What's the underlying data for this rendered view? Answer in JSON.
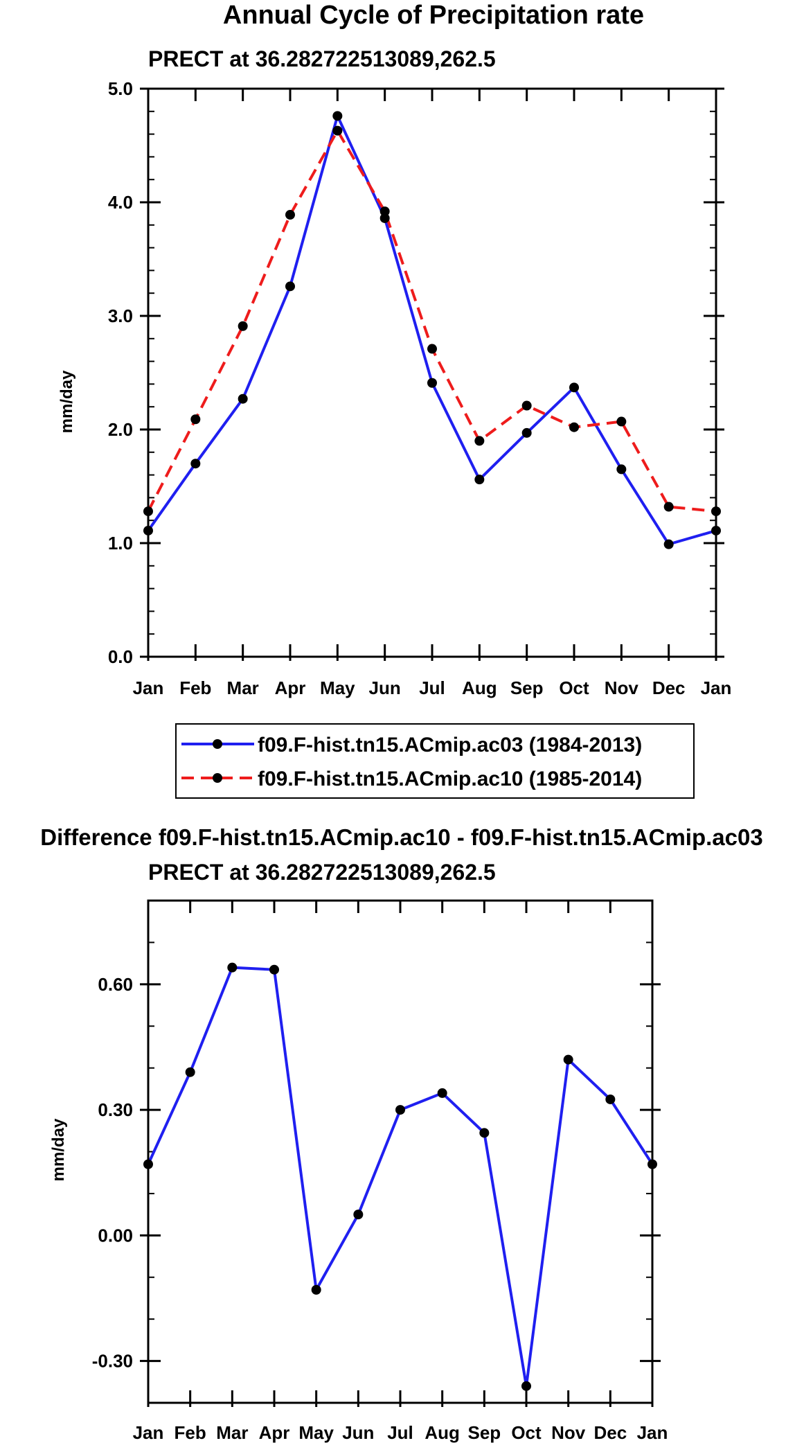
{
  "colors": {
    "series1": "#1f1ff0",
    "series2": "#ee1c1c",
    "marker": "#000000",
    "axis": "#000000"
  },
  "chart_data": [
    {
      "type": "line",
      "title": "Annual Cycle of Precipitation rate",
      "subtitle": "PRECT at 36.282722513089,262.5",
      "xlabel": "",
      "ylabel": "mm/day",
      "categories": [
        "Jan",
        "Feb",
        "Mar",
        "Apr",
        "May",
        "Jun",
        "Jul",
        "Aug",
        "Sep",
        "Oct",
        "Nov",
        "Dec",
        "Jan"
      ],
      "ylim": [
        0,
        5
      ],
      "yticks": [
        0,
        1,
        2,
        3,
        4,
        5
      ],
      "ytick_labels": [
        "0.0",
        "1.0",
        "2.0",
        "3.0",
        "4.0",
        "5.0"
      ],
      "grid": false,
      "legend_position": "bottom",
      "series": [
        {
          "name": "f09.F-hist.tn15.ACmip.ac03 (1984-2013)",
          "color": "#1f1ff0",
          "dash": "solid",
          "values": [
            1.11,
            1.7,
            2.27,
            3.26,
            4.76,
            3.86,
            2.41,
            1.56,
            1.97,
            2.37,
            1.65,
            0.99,
            1.11
          ]
        },
        {
          "name": "f09.F-hist.tn15.ACmip.ac10 (1985-2014)",
          "color": "#ee1c1c",
          "dash": "dashed",
          "values": [
            1.28,
            2.09,
            2.91,
            3.89,
            4.63,
            3.92,
            2.71,
            1.9,
            2.21,
            2.02,
            2.07,
            1.32,
            1.28
          ]
        }
      ]
    },
    {
      "type": "line",
      "title": "Difference f09.F-hist.tn15.ACmip.ac10 - f09.F-hist.tn15.ACmip.ac03",
      "subtitle": "PRECT at 36.282722513089,262.5",
      "xlabel": "",
      "ylabel": "mm/day",
      "categories": [
        "Jan",
        "Feb",
        "Mar",
        "Apr",
        "May",
        "Jun",
        "Jul",
        "Aug",
        "Sep",
        "Oct",
        "Nov",
        "Dec",
        "Jan"
      ],
      "ylim": [
        -0.4,
        0.8
      ],
      "yticks": [
        -0.3,
        0.0,
        0.3,
        0.6
      ],
      "ytick_labels": [
        "-0.30",
        "0.00",
        "0.30",
        "0.60"
      ],
      "grid": false,
      "series": [
        {
          "name": "difference",
          "color": "#1f1ff0",
          "dash": "solid",
          "values": [
            0.17,
            0.39,
            0.64,
            0.635,
            -0.13,
            0.05,
            0.3,
            0.34,
            0.245,
            -0.36,
            0.42,
            0.325,
            0.17
          ]
        }
      ]
    }
  ]
}
